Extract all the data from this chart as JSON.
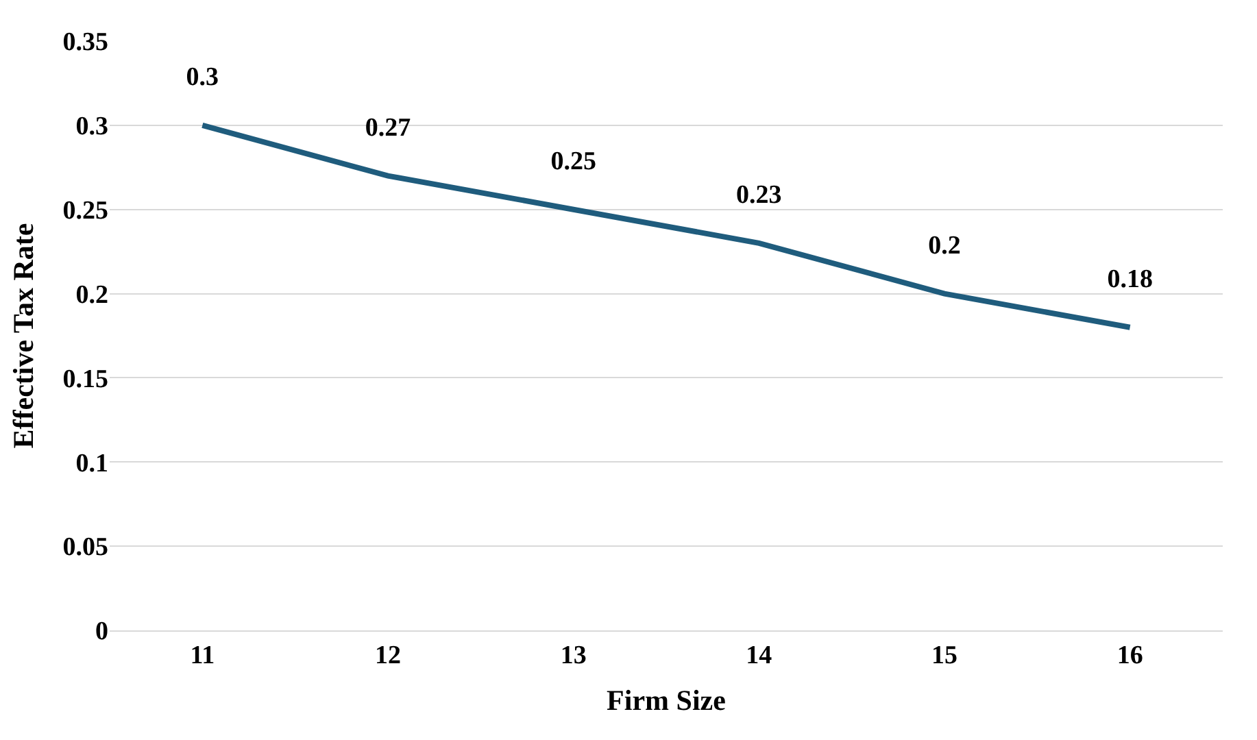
{
  "chart_data": {
    "type": "line",
    "xlabel": "Firm Size",
    "ylabel": "Effective Tax Rate",
    "categories": [
      "11",
      "12",
      "13",
      "14",
      "15",
      "16"
    ],
    "series": [
      {
        "color": "#1f5c7d",
        "values": [
          0.3,
          0.27,
          0.25,
          0.23,
          0.2,
          0.18
        ]
      }
    ],
    "ylim": [
      0,
      0.35
    ],
    "yticks": [
      0,
      0.05,
      0.1,
      0.15,
      0.2,
      0.25,
      0.3,
      0.35
    ],
    "grid": "y",
    "legend": false,
    "data_labels": true,
    "marker": "none",
    "line_style": "solid"
  }
}
